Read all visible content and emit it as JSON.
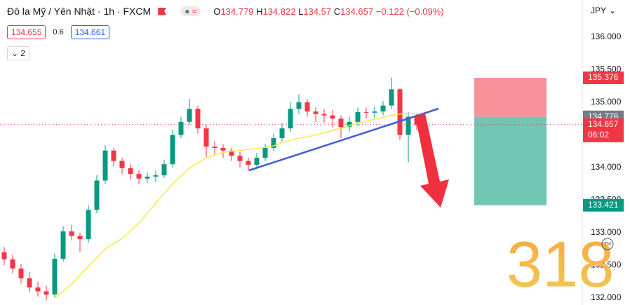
{
  "chart_data": {
    "type": "candlestick",
    "title": "Đô la Mỹ / Yên Nhật · 1h · FXCM",
    "legend_letters": [
      "O",
      "H",
      "L",
      "C"
    ],
    "change": "−0.122 (−0.09%)",
    "bid": 134.655,
    "spread": 0.6,
    "ask": 134.661,
    "indicator_count": 2,
    "currency": "JPY",
    "watermark": "318",
    "watermark_mark": "TM",
    "countdown": "06:02",
    "up_color": "#089981",
    "down_color": "#f23645",
    "ylim": [
      131.89,
      136.57
    ],
    "yticks": [
      {
        "value": 132,
        "label": "132.000"
      },
      {
        "value": 132.5,
        "label": "132.500"
      },
      {
        "value": 133,
        "label": "133.000"
      },
      {
        "value": 133.5,
        "label": "133.500"
      },
      {
        "value": 134,
        "label": "134.000"
      },
      {
        "value": 134.5,
        "label": "134.500"
      },
      {
        "value": 135,
        "label": "135.000"
      },
      {
        "value": 135.5,
        "label": "135.500"
      },
      {
        "value": 136,
        "label": "136.000"
      }
    ],
    "grid": false,
    "open": [
      132.7,
      132.59,
      132.45,
      132.3,
      132.16,
      132.1,
      132.05,
      132.6,
      133.02,
      132.95,
      132.9,
      133.35,
      133.8,
      134.26,
      134.1,
      133.99,
      133.9,
      133.83,
      133.86,
      133.88,
      134.05,
      134.5,
      134.7,
      134.9,
      134.6,
      134.32,
      134.3,
      134.26,
      134.18,
      134.1,
      134.04,
      134.15,
      134.3,
      134.45,
      134.6,
      134.9,
      135.0,
      134.86,
      134.82,
      134.8,
      134.75,
      134.62,
      134.7,
      134.85,
      134.84,
      134.86,
      134.95,
      135.2,
      134.5,
      134.779
    ],
    "high": [
      132.78,
      132.66,
      132.52,
      132.4,
      132.25,
      132.18,
      132.68,
      133.1,
      133.12,
      133.0,
      133.42,
      133.88,
      134.34,
      134.3,
      134.15,
      134.05,
      133.96,
      133.92,
      133.95,
      134.12,
      134.58,
      134.78,
      135.05,
      134.95,
      134.66,
      134.4,
      134.36,
      134.3,
      134.24,
      134.15,
      134.22,
      134.36,
      134.52,
      134.68,
      135.0,
      135.12,
      135.05,
      134.92,
      134.9,
      134.88,
      134.8,
      134.78,
      134.92,
      134.92,
      134.94,
      135.02,
      135.38,
      135.22,
      134.85,
      134.822
    ],
    "low": [
      132.5,
      132.38,
      132.22,
      132.08,
      132.02,
      131.96,
      132.0,
      132.55,
      132.88,
      132.7,
      132.85,
      133.3,
      133.75,
      134.02,
      133.9,
      133.82,
      133.74,
      133.76,
      133.78,
      133.84,
      134.0,
      134.45,
      134.66,
      134.52,
      134.16,
      134.2,
      134.15,
      134.1,
      134.0,
      133.95,
      133.98,
      134.1,
      134.25,
      134.4,
      134.55,
      134.82,
      134.78,
      134.7,
      134.68,
      134.62,
      134.45,
      134.55,
      134.64,
      134.75,
      134.76,
      134.8,
      134.9,
      134.42,
      134.08,
      134.57
    ],
    "close": [
      132.59,
      132.45,
      132.3,
      132.16,
      132.1,
      132.05,
      132.6,
      133.02,
      132.95,
      132.9,
      133.35,
      133.8,
      134.26,
      134.1,
      133.99,
      133.9,
      133.83,
      133.86,
      133.88,
      134.05,
      134.5,
      134.7,
      134.9,
      134.6,
      134.32,
      134.3,
      134.26,
      134.18,
      134.1,
      134.04,
      134.15,
      134.3,
      134.45,
      134.6,
      134.9,
      135.0,
      134.86,
      134.82,
      134.8,
      134.75,
      134.62,
      134.7,
      134.85,
      134.84,
      134.86,
      134.95,
      135.2,
      134.5,
      134.779,
      134.657
    ],
    "moving_average": {
      "color": "#ffe74c",
      "values": [
        null,
        null,
        null,
        null,
        null,
        null,
        132.0,
        132.1,
        132.21,
        132.35,
        132.48,
        132.62,
        132.75,
        132.83,
        132.91,
        133.03,
        133.15,
        133.3,
        133.45,
        133.6,
        133.75,
        133.87,
        133.99,
        134.07,
        134.15,
        134.19,
        134.23,
        134.25,
        134.26,
        134.28,
        134.29,
        134.31,
        134.33,
        134.38,
        134.42,
        134.45,
        134.47,
        134.5,
        134.53,
        134.57,
        134.6,
        134.64,
        134.68,
        134.71,
        134.74,
        134.77,
        134.8,
        134.82,
        134.83,
        134.83
      ]
    },
    "position": {
      "stop": 135.376,
      "entry": 134.776,
      "target": 133.421,
      "stop_color": "#f7919a",
      "target_color": "#6fc6b2"
    }
  }
}
